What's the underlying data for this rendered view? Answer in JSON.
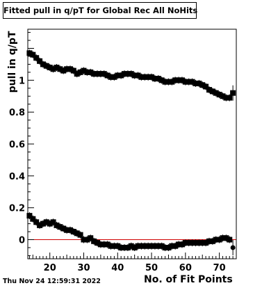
{
  "chart_data": {
    "type": "scatter",
    "title": "Fitted pull in q/pT for Global Rec All NoHits",
    "xlabel": "No. of Fit Points",
    "ylabel": "pull in q/pT",
    "timestamp": "Thu Nov 24 12:59:31 2022",
    "xlim": [
      13.5,
      75
    ],
    "ylim": [
      -0.12,
      1.32
    ],
    "xticks": [
      20,
      30,
      40,
      50,
      60,
      70
    ],
    "yticks": [
      0,
      0.2,
      0.4,
      0.6,
      0.8,
      1
    ],
    "reference_line": {
      "y": 0,
      "color": "#d00000"
    },
    "series": [
      {
        "marker": "square",
        "x": [
          14,
          15,
          16,
          17,
          18,
          19,
          20,
          21,
          22,
          23,
          24,
          25,
          26,
          27,
          28,
          29,
          30,
          31,
          32,
          33,
          34,
          35,
          36,
          37,
          38,
          39,
          40,
          41,
          42,
          43,
          44,
          45,
          46,
          47,
          48,
          49,
          50,
          51,
          52,
          53,
          54,
          55,
          56,
          57,
          58,
          59,
          60,
          61,
          62,
          63,
          64,
          65,
          66,
          67,
          68,
          69,
          70,
          71,
          72,
          73,
          74
        ],
        "y": [
          1.17,
          1.16,
          1.14,
          1.12,
          1.1,
          1.09,
          1.08,
          1.07,
          1.08,
          1.07,
          1.06,
          1.07,
          1.07,
          1.06,
          1.04,
          1.05,
          1.06,
          1.05,
          1.05,
          1.04,
          1.04,
          1.04,
          1.04,
          1.03,
          1.02,
          1.02,
          1.03,
          1.03,
          1.04,
          1.04,
          1.04,
          1.03,
          1.03,
          1.02,
          1.02,
          1.02,
          1.02,
          1.01,
          1.01,
          1.0,
          0.99,
          0.99,
          0.99,
          1.0,
          1.0,
          1.0,
          0.99,
          0.99,
          0.99,
          0.98,
          0.98,
          0.97,
          0.96,
          0.94,
          0.93,
          0.92,
          0.91,
          0.9,
          0.89,
          0.89,
          0.92
        ]
      },
      {
        "marker": "square",
        "x": [
          14,
          15,
          16,
          17,
          18,
          19,
          20,
          21,
          22,
          23,
          24,
          25,
          26,
          27,
          28,
          29,
          30,
          31,
          32,
          33,
          34,
          35,
          36,
          37,
          38,
          39,
          40,
          41,
          42,
          43,
          44,
          45,
          46,
          47,
          48,
          49,
          50,
          51,
          52,
          53,
          54,
          55,
          56,
          57,
          58,
          59,
          60,
          61,
          62,
          63,
          64,
          65,
          66,
          67,
          68,
          69,
          70,
          71,
          72,
          73,
          74
        ],
        "y": [
          0.15,
          0.13,
          0.11,
          0.09,
          0.1,
          0.11,
          0.1,
          0.11,
          0.09,
          0.08,
          0.07,
          0.06,
          0.06,
          0.05,
          0.04,
          0.03,
          0.0,
          0.0,
          0.01,
          -0.01,
          -0.02,
          -0.03,
          -0.03,
          -0.03,
          -0.04,
          -0.04,
          -0.04,
          -0.05,
          -0.05,
          -0.05,
          -0.04,
          -0.05,
          -0.04,
          -0.04,
          -0.04,
          -0.04,
          -0.04,
          -0.04,
          -0.04,
          -0.04,
          -0.05,
          -0.05,
          -0.04,
          -0.04,
          -0.03,
          -0.03,
          -0.02,
          -0.02,
          -0.02,
          -0.02,
          -0.02,
          -0.02,
          -0.02,
          -0.01,
          -0.01,
          0.0,
          0.0,
          0.01,
          0.01,
          0.0,
          -0.05
        ]
      }
    ]
  }
}
